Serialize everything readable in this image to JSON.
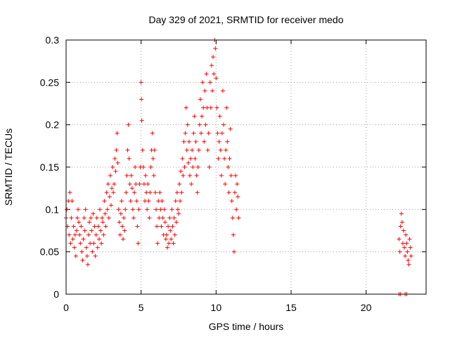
{
  "chart_data": {
    "type": "scatter",
    "title": "Day 329 of 2021, SRMTID for receiver medo",
    "xlabel": "GPS time / hours",
    "ylabel": "SRMTID / TECUs",
    "xlim": [
      0,
      24
    ],
    "ylim": [
      0,
      0.3
    ],
    "x_ticks": [
      0,
      5,
      10,
      15,
      20
    ],
    "x_tick_labels": [
      "0",
      "5",
      "10",
      "15",
      "20"
    ],
    "y_ticks": [
      0,
      0.05,
      0.1,
      0.15,
      0.2,
      0.25,
      0.3
    ],
    "y_tick_labels": [
      "0",
      "0.05",
      "0.1",
      "0.15",
      "0.2",
      "0.25",
      "0.3"
    ],
    "grid": true,
    "marker": "plus",
    "color": "#ff0000",
    "series": [
      {
        "values_description": "",
        "points": [
          [
            0.0,
            0.09
          ],
          [
            0.05,
            0.1
          ],
          [
            0.1,
            0.08
          ],
          [
            0.15,
            0.11
          ],
          [
            0.2,
            0.07
          ],
          [
            0.25,
            0.12
          ],
          [
            0.3,
            0.06
          ],
          [
            0.35,
            0.09
          ],
          [
            0.4,
            0.11
          ],
          [
            0.45,
            0.065
          ],
          [
            0.5,
            0.08
          ],
          [
            0.55,
            0.055
          ],
          [
            0.6,
            0.07
          ],
          [
            0.65,
            0.045
          ],
          [
            0.7,
            0.075
          ],
          [
            0.75,
            0.09
          ],
          [
            0.8,
            0.1
          ],
          [
            0.85,
            0.085
          ],
          [
            0.9,
            0.07
          ],
          [
            0.95,
            0.06
          ],
          [
            1.0,
            0.08
          ],
          [
            1.05,
            0.05
          ],
          [
            1.1,
            0.04
          ],
          [
            1.15,
            0.065
          ],
          [
            1.2,
            0.09
          ],
          [
            1.25,
            0.075
          ],
          [
            1.3,
            0.1
          ],
          [
            1.35,
            0.055
          ],
          [
            1.4,
            0.045
          ],
          [
            1.45,
            0.035
          ],
          [
            1.5,
            0.07
          ],
          [
            1.55,
            0.085
          ],
          [
            1.6,
            0.06
          ],
          [
            1.65,
            0.09
          ],
          [
            1.7,
            0.075
          ],
          [
            1.75,
            0.05
          ],
          [
            1.8,
            0.095
          ],
          [
            1.85,
            0.06
          ],
          [
            1.9,
            0.08
          ],
          [
            1.95,
            0.045
          ],
          [
            2.0,
            0.07
          ],
          [
            2.05,
            0.09
          ],
          [
            2.1,
            0.055
          ],
          [
            2.15,
            0.08
          ],
          [
            2.2,
            0.065
          ],
          [
            2.25,
            0.1
          ],
          [
            2.3,
            0.075
          ],
          [
            2.35,
            0.06
          ],
          [
            2.4,
            0.09
          ],
          [
            2.45,
            0.085
          ],
          [
            2.5,
            0.07
          ],
          [
            2.55,
            0.11
          ],
          [
            2.6,
            0.095
          ],
          [
            2.65,
            0.08
          ],
          [
            2.7,
            0.12
          ],
          [
            2.75,
            0.1
          ],
          [
            2.8,
            0.13
          ],
          [
            2.85,
            0.09
          ],
          [
            2.9,
            0.115
          ],
          [
            2.95,
            0.14
          ],
          [
            3.0,
            0.105
          ],
          [
            3.05,
            0.125
          ],
          [
            3.1,
            0.15
          ],
          [
            3.15,
            0.12
          ],
          [
            3.2,
            0.13
          ],
          [
            3.25,
            0.16
          ],
          [
            3.3,
            0.145
          ],
          [
            3.35,
            0.17
          ],
          [
            3.4,
            0.19
          ],
          [
            3.45,
            0.155
          ],
          [
            3.5,
            0.1
          ],
          [
            3.55,
            0.085
          ],
          [
            3.6,
            0.07
          ],
          [
            3.65,
            0.095
          ],
          [
            3.7,
            0.11
          ],
          [
            3.75,
            0.08
          ],
          [
            3.8,
            0.065
          ],
          [
            3.85,
            0.09
          ],
          [
            3.9,
            0.075
          ],
          [
            3.95,
            0.1
          ],
          [
            4.0,
            0.12
          ],
          [
            4.05,
            0.14
          ],
          [
            4.1,
            0.17
          ],
          [
            4.15,
            0.2
          ],
          [
            4.2,
            0.16
          ],
          [
            4.25,
            0.13
          ],
          [
            4.3,
            0.11
          ],
          [
            4.35,
            0.14
          ],
          [
            4.4,
            0.125
          ],
          [
            4.45,
            0.1
          ],
          [
            4.5,
            0.09
          ],
          [
            4.55,
            0.12
          ],
          [
            4.6,
            0.15
          ],
          [
            4.65,
            0.13
          ],
          [
            4.7,
            0.11
          ],
          [
            4.75,
            0.08
          ],
          [
            4.8,
            0.06
          ],
          [
            4.85,
            0.1
          ],
          [
            4.9,
            0.13
          ],
          [
            4.95,
            0.15
          ],
          [
            5.0,
            0.25
          ],
          [
            5.02,
            0.23
          ],
          [
            5.05,
            0.205
          ],
          [
            5.1,
            0.17
          ],
          [
            5.15,
            0.15
          ],
          [
            5.2,
            0.13
          ],
          [
            5.25,
            0.11
          ],
          [
            5.3,
            0.14
          ],
          [
            5.35,
            0.12
          ],
          [
            5.4,
            0.1
          ],
          [
            5.45,
            0.13
          ],
          [
            5.5,
            0.11
          ],
          [
            5.55,
            0.09
          ],
          [
            5.6,
            0.12
          ],
          [
            5.65,
            0.15
          ],
          [
            5.7,
            0.17
          ],
          [
            5.75,
            0.19
          ],
          [
            5.8,
            0.16
          ],
          [
            5.85,
            0.14
          ],
          [
            5.9,
            0.17
          ],
          [
            5.95,
            0.12
          ],
          [
            6.0,
            0.1
          ],
          [
            6.05,
            0.08
          ],
          [
            6.1,
            0.06
          ],
          [
            6.15,
            0.11
          ],
          [
            6.2,
            0.09
          ],
          [
            6.25,
            0.12
          ],
          [
            6.3,
            0.1
          ],
          [
            6.35,
            0.08
          ],
          [
            6.4,
            0.11
          ],
          [
            6.45,
            0.09
          ],
          [
            6.5,
            0.07
          ],
          [
            6.55,
            0.1
          ],
          [
            6.6,
            0.085
          ],
          [
            6.65,
            0.065
          ],
          [
            6.7,
            0.07
          ],
          [
            6.75,
            0.055
          ],
          [
            6.8,
            0.08
          ],
          [
            6.85,
            0.06
          ],
          [
            6.9,
            0.09
          ],
          [
            6.95,
            0.075
          ],
          [
            7.0,
            0.065
          ],
          [
            7.05,
            0.1
          ],
          [
            7.1,
            0.08
          ],
          [
            7.15,
            0.06
          ],
          [
            7.2,
            0.09
          ],
          [
            7.25,
            0.07
          ],
          [
            7.3,
            0.11
          ],
          [
            7.35,
            0.085
          ],
          [
            7.4,
            0.12
          ],
          [
            7.45,
            0.1
          ],
          [
            7.5,
            0.095
          ],
          [
            7.55,
            0.13
          ],
          [
            7.6,
            0.11
          ],
          [
            7.65,
            0.145
          ],
          [
            7.7,
            0.12
          ],
          [
            7.75,
            0.16
          ],
          [
            7.8,
            0.14
          ],
          [
            7.85,
            0.18
          ],
          [
            7.9,
            0.15
          ],
          [
            7.95,
            0.19
          ],
          [
            8.0,
            0.22
          ],
          [
            8.05,
            0.17
          ],
          [
            8.1,
            0.2
          ],
          [
            8.15,
            0.155
          ],
          [
            8.2,
            0.18
          ],
          [
            8.25,
            0.14
          ],
          [
            8.3,
            0.16
          ],
          [
            8.35,
            0.13
          ],
          [
            8.4,
            0.17
          ],
          [
            8.45,
            0.15
          ],
          [
            8.5,
            0.19
          ],
          [
            8.55,
            0.21
          ],
          [
            8.6,
            0.16
          ],
          [
            8.65,
            0.18
          ],
          [
            8.7,
            0.14
          ],
          [
            8.75,
            0.12
          ],
          [
            8.8,
            0.15
          ],
          [
            8.85,
            0.17
          ],
          [
            8.9,
            0.2
          ],
          [
            8.95,
            0.23
          ],
          [
            9.0,
            0.19
          ],
          [
            9.05,
            0.21
          ],
          [
            9.1,
            0.25
          ],
          [
            9.15,
            0.22
          ],
          [
            9.2,
            0.18
          ],
          [
            9.25,
            0.24
          ],
          [
            9.3,
            0.2
          ],
          [
            9.35,
            0.26
          ],
          [
            9.4,
            0.22
          ],
          [
            9.45,
            0.17
          ],
          [
            9.5,
            0.19
          ],
          [
            9.55,
            0.15
          ],
          [
            9.6,
            0.25
          ],
          [
            9.65,
            0.22
          ],
          [
            9.7,
            0.27
          ],
          [
            9.75,
            0.24
          ],
          [
            9.8,
            0.28
          ],
          [
            9.85,
            0.26
          ],
          [
            9.9,
            0.3
          ],
          [
            9.95,
            0.29
          ],
          [
            10.0,
            0.255
          ],
          [
            10.05,
            0.22
          ],
          [
            10.1,
            0.19
          ],
          [
            10.15,
            0.16
          ],
          [
            10.2,
            0.18
          ],
          [
            10.25,
            0.21
          ],
          [
            10.3,
            0.17
          ],
          [
            10.35,
            0.14
          ],
          [
            10.4,
            0.19
          ],
          [
            10.45,
            0.24
          ],
          [
            10.5,
            0.2
          ],
          [
            10.55,
            0.16
          ],
          [
            10.6,
            0.13
          ],
          [
            10.65,
            0.17
          ],
          [
            10.7,
            0.22
          ],
          [
            10.75,
            0.18
          ],
          [
            10.8,
            0.15
          ],
          [
            10.85,
            0.12
          ],
          [
            10.9,
            0.16
          ],
          [
            10.95,
            0.195
          ],
          [
            11.0,
            0.14
          ],
          [
            11.05,
            0.11
          ],
          [
            11.1,
            0.09
          ],
          [
            11.15,
            0.07
          ],
          [
            11.2,
            0.05
          ],
          [
            11.25,
            0.12
          ],
          [
            11.3,
            0.14
          ],
          [
            11.35,
            0.1
          ],
          [
            11.4,
            0.13
          ],
          [
            11.45,
            0.115
          ],
          [
            11.5,
            0.09
          ],
          [
            22.2,
            0.065
          ],
          [
            22.25,
            0.05
          ],
          [
            22.3,
            0.08
          ],
          [
            22.35,
            0.095
          ],
          [
            22.4,
            0.085
          ],
          [
            22.45,
            0.06
          ],
          [
            22.5,
            0.075
          ],
          [
            22.55,
            0.055
          ],
          [
            22.6,
            0.045
          ],
          [
            22.65,
            0.07
          ],
          [
            22.7,
            0.06
          ],
          [
            22.75,
            0.05
          ],
          [
            22.8,
            0.04
          ],
          [
            22.85,
            0.035
          ],
          [
            22.9,
            0.065
          ],
          [
            22.95,
            0.055
          ],
          [
            23.0,
            0.045
          ],
          [
            22.2,
            0.0
          ],
          [
            22.3,
            0.0
          ],
          [
            22.6,
            0.0
          ],
          [
            22.7,
            0.0
          ]
        ]
      }
    ]
  }
}
